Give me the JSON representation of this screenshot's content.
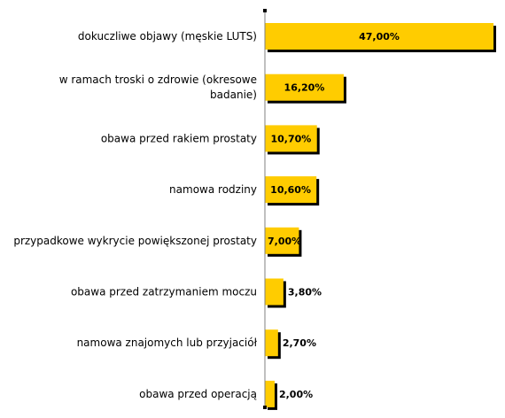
{
  "chart_data": {
    "type": "bar",
    "orientation": "horizontal",
    "title": "",
    "xlabel": "",
    "ylabel": "",
    "xlim": [
      0,
      47
    ],
    "grid": false,
    "legend": "none",
    "categories": [
      [
        "dokuczliwe objawy (męskie LUTS)"
      ],
      [
        "w ramach troski o zdrowie (okresowe",
        "badanie)"
      ],
      [
        "obawa przed rakiem prostaty"
      ],
      [
        "namowa rodziny"
      ],
      [
        "przypadkowe wykrycie powiększonej prostaty"
      ],
      [
        "obawa przed zatrzymaniem moczu"
      ],
      [
        "namowa znajomych lub przyjaciół"
      ],
      [
        "obawa przed operacją"
      ]
    ],
    "values": [
      47.0,
      16.2,
      10.7,
      10.6,
      7.0,
      3.8,
      2.7,
      2.0
    ],
    "value_labels": [
      "47,00%",
      "16,20%",
      "10,70%",
      "10,60%",
      "7,00%",
      "3,80%",
      "2,70%",
      "2,00%"
    ],
    "colors": {
      "bar": "#FFCC00",
      "shadow": "#000000",
      "axis": "#808080"
    }
  }
}
